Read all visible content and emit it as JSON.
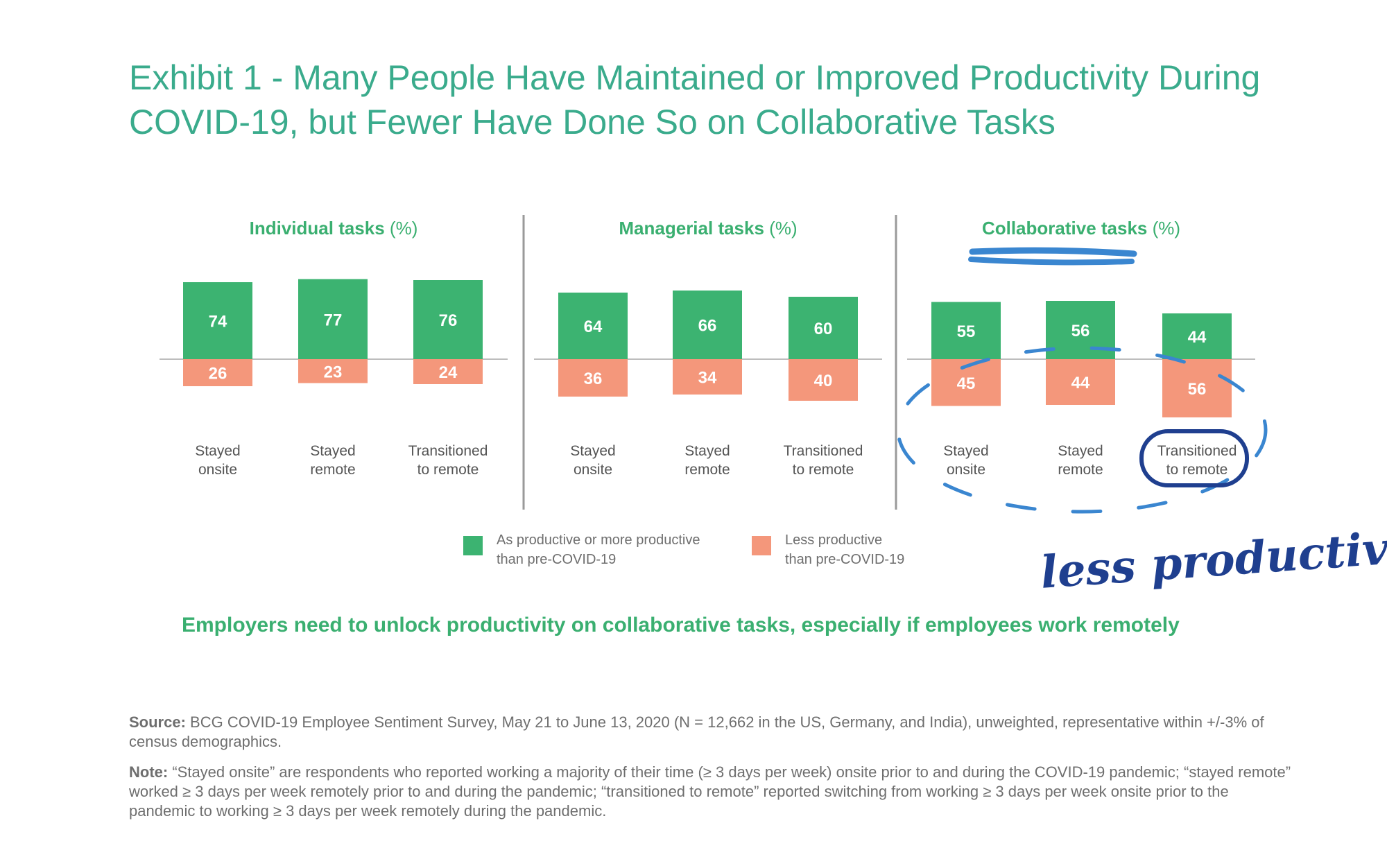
{
  "title_line1": "Exhibit 1 - Many People Have Maintained or Improved Productivity During",
  "title_line2": "COVID-19, but Fewer Have Done So on Collaborative Tasks",
  "chart_data": {
    "type": "bar",
    "stacked": "diverging",
    "colors": {
      "positive": "#3cb371",
      "negative": "#f4977b"
    },
    "panels": [
      {
        "title": "Individual tasks",
        "unit": "(%)",
        "categories": [
          "Stayed onsite",
          "Stayed remote",
          "Transitioned to remote"
        ],
        "category_lines": [
          [
            "Stayed",
            "onsite"
          ],
          [
            "Stayed",
            "remote"
          ],
          [
            "Transitioned",
            "to remote"
          ]
        ],
        "series": [
          {
            "name": "As productive or more productive than pre-COVID-19",
            "values": [
              74,
              77,
              76
            ]
          },
          {
            "name": "Less productive than pre-COVID-19",
            "values": [
              26,
              23,
              24
            ]
          }
        ]
      },
      {
        "title": "Managerial tasks",
        "unit": "(%)",
        "categories": [
          "Stayed onsite",
          "Stayed remote",
          "Transitioned to remote"
        ],
        "category_lines": [
          [
            "Stayed",
            "onsite"
          ],
          [
            "Stayed",
            "remote"
          ],
          [
            "Transitioned",
            "to remote"
          ]
        ],
        "series": [
          {
            "name": "As productive or more productive than pre-COVID-19",
            "values": [
              64,
              66,
              60
            ]
          },
          {
            "name": "Less productive than pre-COVID-19",
            "values": [
              36,
              34,
              40
            ]
          }
        ]
      },
      {
        "title": "Collaborative tasks",
        "unit": "(%)",
        "categories": [
          "Stayed onsite",
          "Stayed remote",
          "Transitioned to remote"
        ],
        "category_lines": [
          [
            "Stayed",
            "onsite"
          ],
          [
            "Stayed",
            "remote"
          ],
          [
            "Transitioned",
            "to remote"
          ]
        ],
        "series": [
          {
            "name": "As productive or more productive than pre-COVID-19",
            "values": [
              55,
              56,
              44
            ]
          },
          {
            "name": "Less productive than pre-COVID-19",
            "values": [
              45,
              44,
              56
            ]
          }
        ]
      }
    ]
  },
  "legend": {
    "positive_line1": "As productive or more productive",
    "positive_line2": "than pre-COVID-19",
    "negative_line1": "Less productive",
    "negative_line2": "than pre-COVID-19"
  },
  "takeaway": "Employers need to unlock productivity on collaborative tasks, especially if employees work remotely",
  "source_label": "Source:",
  "source_text": " BCG COVID-19 Employee Sentiment Survey, May 21 to June 13, 2020 (N = 12,662 in the US, Germany, and India), unweighted, representative within +/-3% of census demographics.",
  "note_label": "Note:",
  "note_text": " “Stayed onsite” are respondents who reported working a majority of their time (≥ 3 days per week) onsite prior to and during the COVID-19 pandemic; “stayed remote” worked ≥ 3 days per week remotely prior to and during the pandemic; “transitioned to remote” reported switching from working ≥ 3 days per week onsite prior to the pandemic to working ≥ 3 days per week remotely during the pandemic.",
  "handwritten_note": "less productive",
  "annotation_color": "#3a86d0"
}
